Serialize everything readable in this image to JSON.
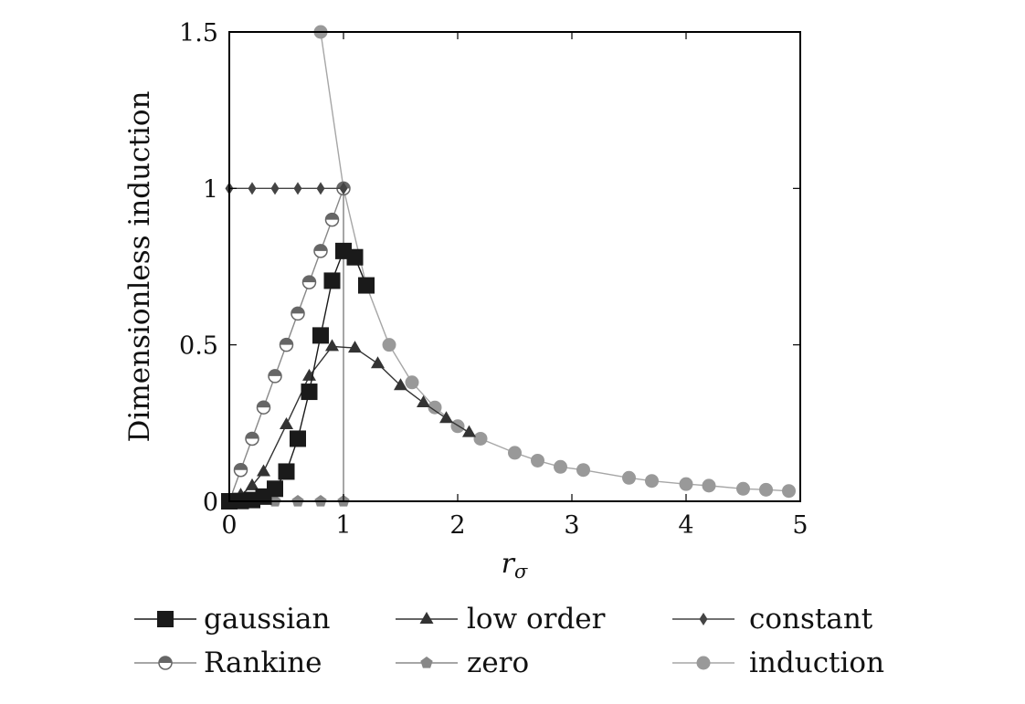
{
  "chart_data": {
    "type": "line",
    "title": "",
    "xlabel": "r",
    "xlabel_sub": "σ",
    "ylabel": "Dimensionless induction",
    "xlim": [
      0,
      5
    ],
    "ylim": [
      0,
      1.5
    ],
    "xticks": [
      0,
      1,
      2,
      3,
      4,
      5
    ],
    "xtick_labels": [
      "0",
      "1",
      "2",
      "3",
      "4",
      "5"
    ],
    "yticks": [
      0,
      0.5,
      1,
      1.5
    ],
    "ytick_labels": [
      "0",
      "0.5",
      "1",
      "1.5"
    ],
    "grid": false,
    "legend_position": "bottom",
    "vertical_line": {
      "x": 1,
      "y0": 0,
      "y1": 1
    },
    "series": [
      {
        "name": "gaussian",
        "marker": "square",
        "color": "#1a1a1a",
        "line_color": "#1a1a1a",
        "x": [
          0,
          0.1,
          0.2,
          0.3,
          0.4,
          0.5,
          0.6,
          0.7,
          0.8,
          0.9,
          1.0,
          1.1,
          1.2
        ],
        "y": [
          0,
          0.001,
          0.004,
          0.015,
          0.04,
          0.095,
          0.2,
          0.35,
          0.53,
          0.705,
          0.8,
          0.78,
          0.69
        ]
      },
      {
        "name": "low order",
        "marker": "triangle",
        "color": "#333333",
        "line_color": "#333333",
        "x": [
          0,
          0.1,
          0.2,
          0.3,
          0.5,
          0.7,
          0.9,
          1.1,
          1.3,
          1.5,
          1.7,
          1.9,
          2.1
        ],
        "y": [
          0,
          0.02,
          0.05,
          0.095,
          0.245,
          0.4,
          0.495,
          0.49,
          0.44,
          0.37,
          0.315,
          0.265,
          0.22
        ]
      },
      {
        "name": "constant",
        "marker": "diamond",
        "color": "#444444",
        "line_color": "#444444",
        "x": [
          0,
          0.2,
          0.4,
          0.6,
          0.8,
          1.0
        ],
        "y": [
          1,
          1,
          1,
          1,
          1,
          1
        ]
      },
      {
        "name": "Rankine",
        "marker": "halfcircle",
        "color": "#666666",
        "line_color": "#888888",
        "x": [
          0,
          0.1,
          0.2,
          0.3,
          0.4,
          0.5,
          0.6,
          0.7,
          0.8,
          0.9,
          1.0
        ],
        "y": [
          0,
          0.1,
          0.2,
          0.3,
          0.4,
          0.5,
          0.6,
          0.7,
          0.8,
          0.9,
          1.0
        ]
      },
      {
        "name": "zero",
        "marker": "pentagon",
        "color": "#888888",
        "line_color": "#888888",
        "x": [
          0,
          0.2,
          0.4,
          0.6,
          0.8,
          1.0
        ],
        "y": [
          0,
          0,
          0,
          0,
          0,
          0
        ]
      },
      {
        "name": "induction",
        "marker": "circle",
        "color": "#999999",
        "line_color": "#a6a6a6",
        "x": [
          0.8,
          1.0,
          1.2,
          1.4,
          1.6,
          1.8,
          2.0,
          2.2,
          2.5,
          2.7,
          2.9,
          3.1,
          3.5,
          3.7,
          4.0,
          4.2,
          4.5,
          4.7,
          4.9
        ],
        "y": [
          1.5,
          1.0,
          0.69,
          0.5,
          0.38,
          0.3,
          0.24,
          0.2,
          0.155,
          0.13,
          0.11,
          0.1,
          0.075,
          0.065,
          0.055,
          0.05,
          0.04,
          0.037,
          0.033
        ]
      }
    ]
  }
}
